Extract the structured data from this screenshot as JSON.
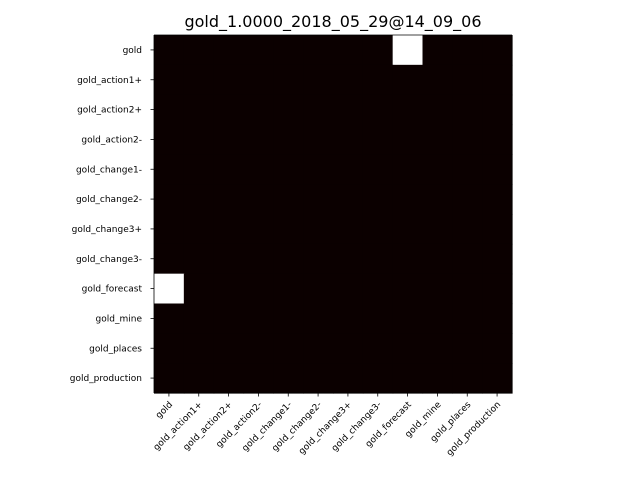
{
  "chart_data": {
    "type": "heatmap",
    "title": "gold_1.0000_2018_05_29@14_09_06",
    "xlabel": "",
    "ylabel": "",
    "rows": [
      "gold",
      "gold_action1+",
      "gold_action2+",
      "gold_action2-",
      "gold_change1-",
      "gold_change2-",
      "gold_change3+",
      "gold_change3-",
      "gold_forecast",
      "gold_mine",
      "gold_places",
      "gold_production"
    ],
    "columns": [
      "gold",
      "gold_action1+",
      "gold_action2+",
      "gold_action2-",
      "gold_change1-",
      "gold_change2-",
      "gold_change3+",
      "gold_change3-",
      "gold_forecast",
      "gold_mine",
      "gold_places",
      "gold_production"
    ],
    "values": [
      [
        0,
        0,
        0,
        0,
        0,
        0,
        0,
        0,
        1,
        0,
        0,
        0
      ],
      [
        0,
        0,
        0,
        0,
        0,
        0,
        0,
        0,
        0,
        0,
        0,
        0
      ],
      [
        0,
        0,
        0,
        0,
        0,
        0,
        0,
        0,
        0,
        0,
        0,
        0
      ],
      [
        0,
        0,
        0,
        0,
        0,
        0,
        0,
        0,
        0,
        0,
        0,
        0
      ],
      [
        0,
        0,
        0,
        0,
        0,
        0,
        0,
        0,
        0,
        0,
        0,
        0
      ],
      [
        0,
        0,
        0,
        0,
        0,
        0,
        0,
        0,
        0,
        0,
        0,
        0
      ],
      [
        0,
        0,
        0,
        0,
        0,
        0,
        0,
        0,
        0,
        0,
        0,
        0
      ],
      [
        0,
        0,
        0,
        0,
        0,
        0,
        0,
        0,
        0,
        0,
        0,
        0
      ],
      [
        1,
        0,
        0,
        0,
        0,
        0,
        0,
        0,
        0,
        0,
        0,
        0
      ],
      [
        0,
        0,
        0,
        0,
        0,
        0,
        0,
        0,
        0,
        0,
        0,
        0
      ],
      [
        0,
        0,
        0,
        0,
        0,
        0,
        0,
        0,
        0,
        0,
        0,
        0
      ],
      [
        0,
        0,
        0,
        0,
        0,
        0,
        0,
        0,
        0,
        0,
        0,
        0
      ]
    ],
    "value_range": [
      0,
      1
    ],
    "colormap": {
      "low": "#0b0000",
      "high": "#ffffff"
    },
    "grid": false,
    "legend": "none"
  }
}
